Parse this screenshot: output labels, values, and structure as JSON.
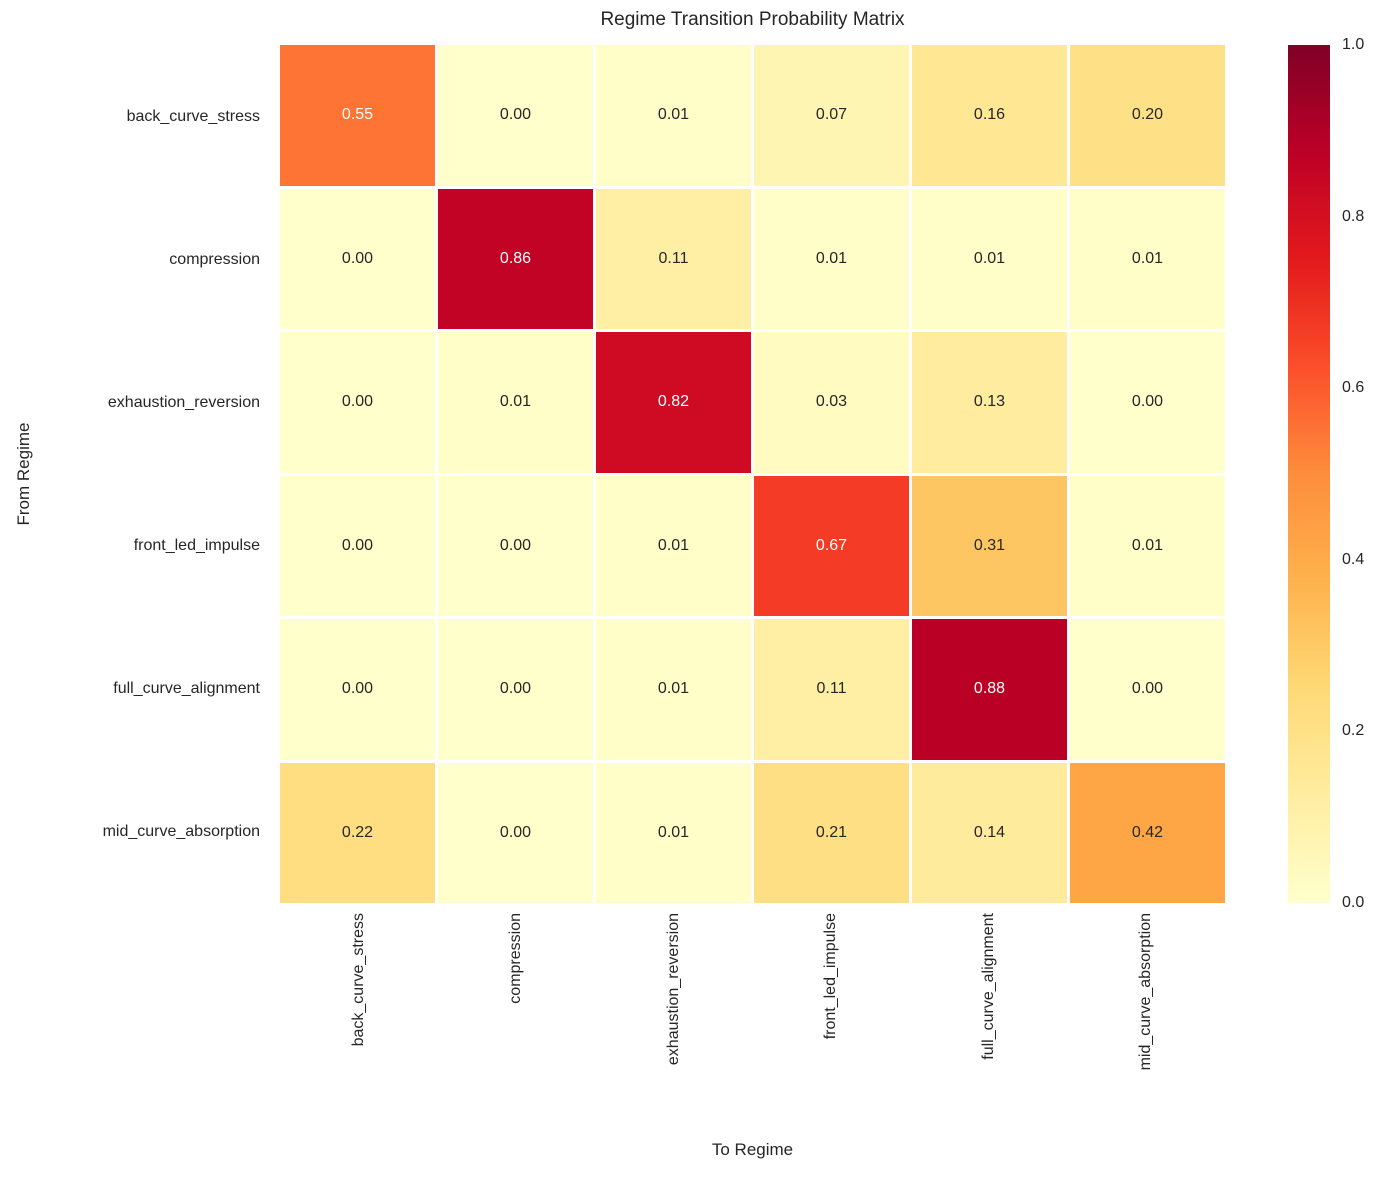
{
  "figure": {
    "background": "#ffffff",
    "text_color": "#262626"
  },
  "chart_data": {
    "type": "heatmap",
    "title": "Regime Transition Probability Matrix",
    "xlabel": "To Regime",
    "ylabel": "From Regime",
    "x_categories": [
      "back_curve_stress",
      "compression",
      "exhaustion_reversion",
      "front_led_impulse",
      "full_curve_alignment",
      "mid_curve_absorption"
    ],
    "y_categories": [
      "back_curve_stress",
      "compression",
      "exhaustion_reversion",
      "front_led_impulse",
      "full_curve_alignment",
      "mid_curve_absorption"
    ],
    "values": [
      [
        0.55,
        0.0,
        0.01,
        0.07,
        0.16,
        0.2
      ],
      [
        0.0,
        0.86,
        0.11,
        0.01,
        0.01,
        0.01
      ],
      [
        0.0,
        0.01,
        0.82,
        0.03,
        0.13,
        0.0
      ],
      [
        0.0,
        0.0,
        0.01,
        0.67,
        0.31,
        0.01
      ],
      [
        0.0,
        0.0,
        0.01,
        0.11,
        0.88,
        0.0
      ],
      [
        0.22,
        0.0,
        0.01,
        0.21,
        0.14,
        0.42
      ]
    ],
    "annot_decimals": 2,
    "grid_line_color": "#ffffff",
    "legend_position": "right",
    "colormap": {
      "name": "YlOrRd",
      "anchors": [
        "#ffffcc",
        "#ffeda0",
        "#fed976",
        "#feb24c",
        "#fd8d3c",
        "#fc4e2a",
        "#e31a1c",
        "#bd0026",
        "#800026"
      ]
    },
    "colorbar": {
      "vmin": 0.0,
      "vmax": 1.0,
      "ticks": [
        "1.0",
        "0.8",
        "0.6",
        "0.4",
        "0.2",
        "0.0"
      ]
    },
    "annot_colors": {
      "light": "#ffffff",
      "dark": "#262626"
    }
  }
}
